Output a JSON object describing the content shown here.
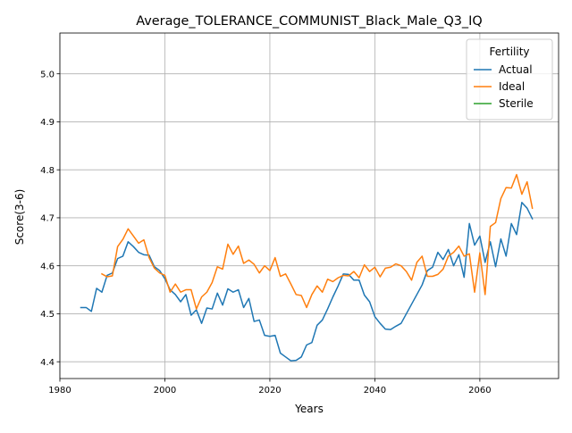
{
  "chart_data": {
    "type": "line",
    "title": "Average_TOLERANCE_COMMUNIST_Black_Male_Q3_IQ",
    "xlabel": "Years",
    "ylabel": "Score(3-6)",
    "xlim": [
      1980,
      2075
    ],
    "ylim": [
      4.365,
      5.085
    ],
    "xticks": [
      1980,
      2000,
      2020,
      2040,
      2060
    ],
    "yticks": [
      4.4,
      4.5,
      4.6,
      4.7,
      4.8,
      4.9,
      5.0
    ],
    "xtick_labels": [
      "1980",
      "2000",
      "2020",
      "2040",
      "2060"
    ],
    "ytick_labels": [
      "4.4",
      "4.5",
      "4.6",
      "4.7",
      "4.8",
      "4.9",
      "5.0"
    ],
    "grid": true,
    "legend": {
      "title": "Fertility",
      "placement": "top-right"
    },
    "series": [
      {
        "name": "Actual",
        "color": "#1f77b4",
        "x": [
          1984,
          1985,
          1986,
          1987,
          1988,
          1989,
          1990,
          1991,
          1992,
          1993,
          1994,
          1995,
          1996,
          1997,
          1998,
          1999,
          2000,
          2001,
          2002,
          2003,
          2004,
          2005,
          2006,
          2007,
          2008,
          2009,
          2010,
          2011,
          2012,
          2013,
          2014,
          2015,
          2016,
          2017,
          2018,
          2019,
          2020,
          2021,
          2022,
          2023,
          2024,
          2025,
          2026,
          2027,
          2028,
          2029,
          2030,
          2031,
          2032,
          2033,
          2034,
          2035,
          2036,
          2037,
          2038,
          2039,
          2040,
          2041,
          2042,
          2043,
          2044,
          2045,
          2046,
          2047,
          2048,
          2049,
          2050,
          2051,
          2052,
          2053,
          2054,
          2055,
          2056,
          2057,
          2058,
          2059,
          2060,
          2061,
          2062,
          2063,
          2064,
          2065,
          2066,
          2067,
          2068,
          2069,
          2070
        ],
        "y": [
          4.513,
          4.513,
          4.505,
          4.553,
          4.545,
          4.58,
          4.585,
          4.615,
          4.62,
          4.65,
          4.64,
          4.628,
          4.623,
          4.622,
          4.598,
          4.59,
          4.573,
          4.55,
          4.54,
          4.525,
          4.54,
          4.497,
          4.508,
          4.48,
          4.512,
          4.51,
          4.543,
          4.518,
          4.552,
          4.545,
          4.55,
          4.513,
          4.532,
          4.484,
          4.487,
          4.455,
          4.453,
          4.455,
          4.418,
          4.41,
          4.402,
          4.403,
          4.41,
          4.435,
          4.44,
          4.476,
          4.487,
          4.51,
          4.535,
          4.558,
          4.583,
          4.582,
          4.57,
          4.57,
          4.539,
          4.525,
          4.494,
          4.48,
          4.468,
          4.467,
          4.474,
          4.48,
          4.5,
          4.52,
          4.54,
          4.56,
          4.59,
          4.597,
          4.628,
          4.613,
          4.634,
          4.6,
          4.623,
          4.576,
          4.688,
          4.643,
          4.662,
          4.607,
          4.65,
          4.598,
          4.656,
          4.62,
          4.688,
          4.665,
          4.732,
          4.72,
          4.698
        ]
      },
      {
        "name": "Ideal",
        "color": "#ff7f0e",
        "x": [
          1988,
          1989,
          1990,
          1991,
          1992,
          1993,
          1994,
          1995,
          1996,
          1997,
          1998,
          1999,
          2000,
          2001,
          2002,
          2003,
          2004,
          2005,
          2006,
          2007,
          2008,
          2009,
          2010,
          2011,
          2012,
          2013,
          2014,
          2015,
          2016,
          2017,
          2018,
          2019,
          2020,
          2021,
          2022,
          2023,
          2024,
          2025,
          2026,
          2027,
          2028,
          2029,
          2030,
          2031,
          2032,
          2033,
          2034,
          2035,
          2036,
          2037,
          2038,
          2039,
          2040,
          2041,
          2042,
          2043,
          2044,
          2045,
          2046,
          2047,
          2048,
          2049,
          2050,
          2051,
          2052,
          2053,
          2054,
          2055,
          2056,
          2057,
          2058,
          2059,
          2060,
          2061,
          2062,
          2063,
          2064,
          2065,
          2066,
          2067,
          2068,
          2069,
          2070
        ],
        "y": [
          4.583,
          4.577,
          4.579,
          4.64,
          4.655,
          4.677,
          4.662,
          4.647,
          4.654,
          4.617,
          4.595,
          4.585,
          4.58,
          4.545,
          4.562,
          4.545,
          4.55,
          4.55,
          4.51,
          4.535,
          4.545,
          4.565,
          4.598,
          4.593,
          4.645,
          4.624,
          4.641,
          4.605,
          4.612,
          4.603,
          4.585,
          4.6,
          4.59,
          4.617,
          4.578,
          4.583,
          4.562,
          4.54,
          4.538,
          4.513,
          4.54,
          4.558,
          4.545,
          4.572,
          4.567,
          4.575,
          4.58,
          4.579,
          4.588,
          4.575,
          4.602,
          4.588,
          4.597,
          4.577,
          4.595,
          4.597,
          4.604,
          4.6,
          4.588,
          4.57,
          4.607,
          4.62,
          4.578,
          4.578,
          4.582,
          4.593,
          4.62,
          4.628,
          4.641,
          4.62,
          4.625,
          4.545,
          4.627,
          4.54,
          4.682,
          4.69,
          4.74,
          4.763,
          4.762,
          4.79,
          4.749,
          4.775,
          4.72
        ]
      },
      {
        "name": "Sterile",
        "color": "#2ca02c",
        "x": [],
        "y": []
      }
    ]
  }
}
